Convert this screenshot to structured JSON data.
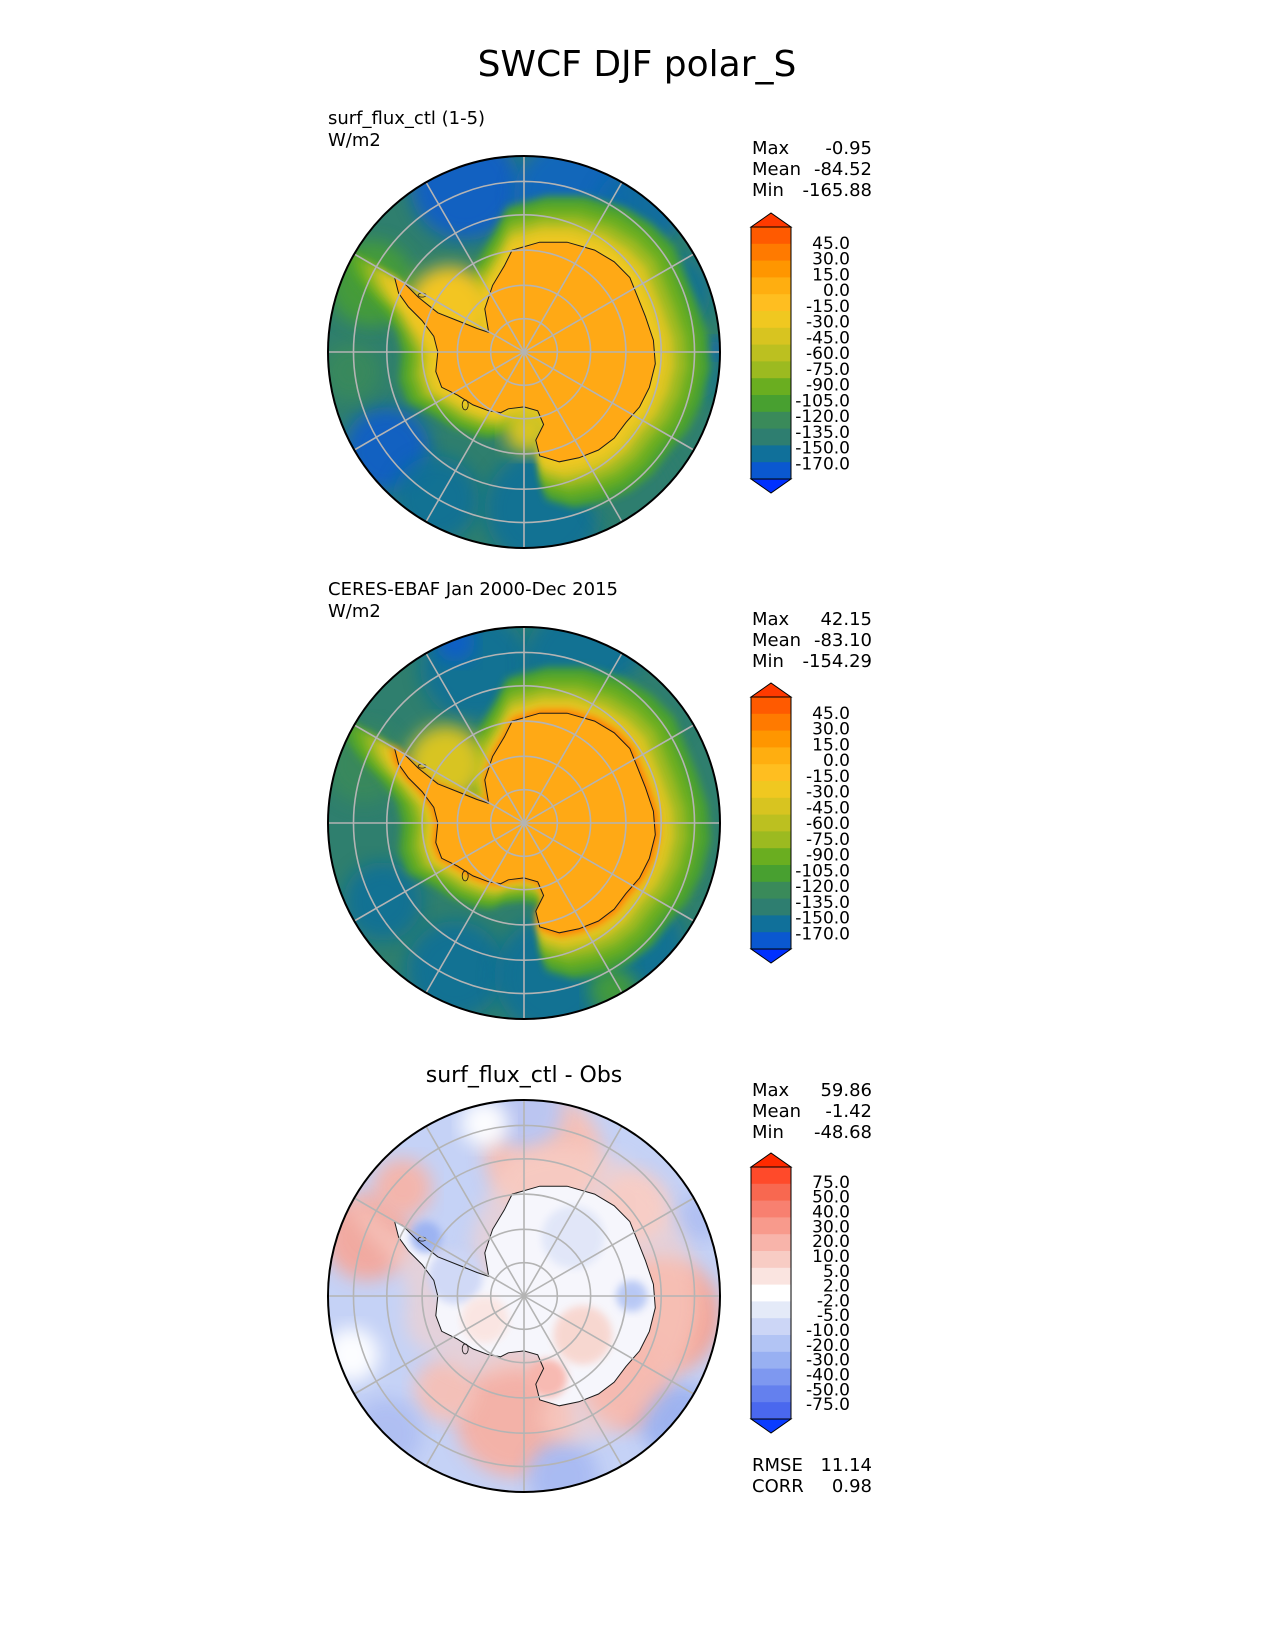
{
  "figure": {
    "title": "SWCF DJF polar_S",
    "background": "#ffffff",
    "colors": {
      "continent_outline": "#1a1a1a",
      "graticule": "#b4b4b4",
      "frame": "#000000"
    }
  },
  "stat_labels": {
    "max": "Max",
    "mean": "Mean",
    "min": "Min",
    "rmse": "RMSE",
    "corr": "CORR"
  },
  "chart_data": [
    {
      "type": "heatmap",
      "projection": "south-polar-stereographic",
      "id": "model",
      "title": "surf_flux_ctl (1-5)",
      "units": "W/m2",
      "stats": {
        "max": "-0.95",
        "mean": "-84.52",
        "min": "-165.88"
      },
      "colorbar": {
        "labels": [
          "45.0",
          "30.0",
          "15.0",
          "0.0",
          "-15.0",
          "-30.0",
          "-45.0",
          "-60.0",
          "-75.0",
          "-90.0",
          "-105.0",
          "-120.0",
          "-135.0",
          "-150.0",
          "-170.0"
        ],
        "colors": [
          "#ff3a00",
          "#ff5a00",
          "#ff7a00",
          "#ff9600",
          "#ffae10",
          "#ffbe20",
          "#f0c820",
          "#d8c420",
          "#bcc020",
          "#9cba20",
          "#6aae20",
          "#48a030",
          "#3a8a5a",
          "#2e7e70",
          "#10709a",
          "#0a58d0",
          "#0030ff"
        ]
      }
    },
    {
      "type": "heatmap",
      "projection": "south-polar-stereographic",
      "id": "obs",
      "title": "CERES-EBAF Jan 2000-Dec 2015",
      "units": "W/m2",
      "stats": {
        "max": "42.15",
        "mean": "-83.10",
        "min": "-154.29"
      },
      "colorbar": {
        "labels": [
          "45.0",
          "30.0",
          "15.0",
          "0.0",
          "-15.0",
          "-30.0",
          "-45.0",
          "-60.0",
          "-75.0",
          "-90.0",
          "-105.0",
          "-120.0",
          "-135.0",
          "-150.0",
          "-170.0"
        ],
        "colors": [
          "#ff3a00",
          "#ff5a00",
          "#ff7a00",
          "#ff9600",
          "#ffae10",
          "#ffbe20",
          "#f0c820",
          "#d8c420",
          "#bcc020",
          "#9cba20",
          "#6aae20",
          "#48a030",
          "#3a8a5a",
          "#2e7e70",
          "#10709a",
          "#0a58d0",
          "#0030ff"
        ]
      }
    },
    {
      "type": "heatmap",
      "projection": "south-polar-stereographic",
      "id": "diff",
      "title": "surf_flux_ctl - Obs",
      "stats": {
        "max": "59.86",
        "mean": "-1.42",
        "min": "-48.68",
        "rmse": "11.14",
        "corr": "0.98"
      },
      "colorbar": {
        "labels": [
          "75.0",
          "50.0",
          "40.0",
          "30.0",
          "20.0",
          "10.0",
          "5.0",
          "2.0",
          "-2.0",
          "-5.0",
          "-10.0",
          "-20.0",
          "-30.0",
          "-40.0",
          "-50.0",
          "-75.0"
        ],
        "colors": [
          "#ff2a00",
          "#ff4a2a",
          "#f86850",
          "#f88070",
          "#f89a8c",
          "#f8b4aa",
          "#f8ccc4",
          "#fae4e0",
          "#ffffff",
          "#e4eaf8",
          "#ccd6f6",
          "#b2c4f4",
          "#98b0f2",
          "#7e98f0",
          "#6480ee",
          "#4a68ee",
          "#0a3cff"
        ]
      }
    }
  ]
}
